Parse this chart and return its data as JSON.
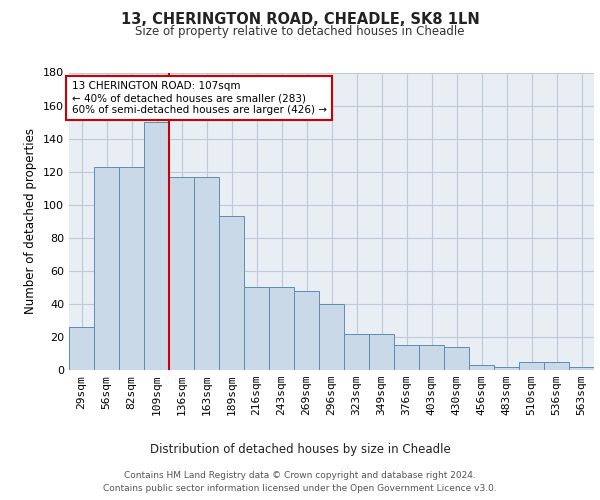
{
  "title": "13, CHERINGTON ROAD, CHEADLE, SK8 1LN",
  "subtitle": "Size of property relative to detached houses in Cheadle",
  "xlabel": "Distribution of detached houses by size in Cheadle",
  "ylabel": "Number of detached properties",
  "bar_labels": [
    "29sqm",
    "56sqm",
    "82sqm",
    "109sqm",
    "136sqm",
    "163sqm",
    "189sqm",
    "216sqm",
    "243sqm",
    "269sqm",
    "296sqm",
    "323sqm",
    "349sqm",
    "376sqm",
    "403sqm",
    "430sqm",
    "456sqm",
    "483sqm",
    "510sqm",
    "536sqm",
    "563sqm"
  ],
  "bar_values": [
    26,
    123,
    123,
    150,
    117,
    117,
    93,
    50,
    50,
    48,
    40,
    22,
    22,
    15,
    15,
    14,
    3,
    2,
    5,
    5,
    2
  ],
  "bar_color": "#c9d9e8",
  "bar_edge_color": "#5b8db8",
  "property_bin_index": 3,
  "annotation_text": "13 CHERINGTON ROAD: 107sqm\n← 40% of detached houses are smaller (283)\n60% of semi-detached houses are larger (426) →",
  "annotation_box_color": "#ffffff",
  "annotation_box_edge_color": "#cc0000",
  "red_line_color": "#cc0000",
  "ylim": [
    0,
    180
  ],
  "yticks": [
    0,
    20,
    40,
    60,
    80,
    100,
    120,
    140,
    160,
    180
  ],
  "grid_color": "#c0c9d8",
  "bg_color": "#e8eef4",
  "footer_line1": "Contains HM Land Registry data © Crown copyright and database right 2024.",
  "footer_line2": "Contains public sector information licensed under the Open Government Licence v3.0."
}
